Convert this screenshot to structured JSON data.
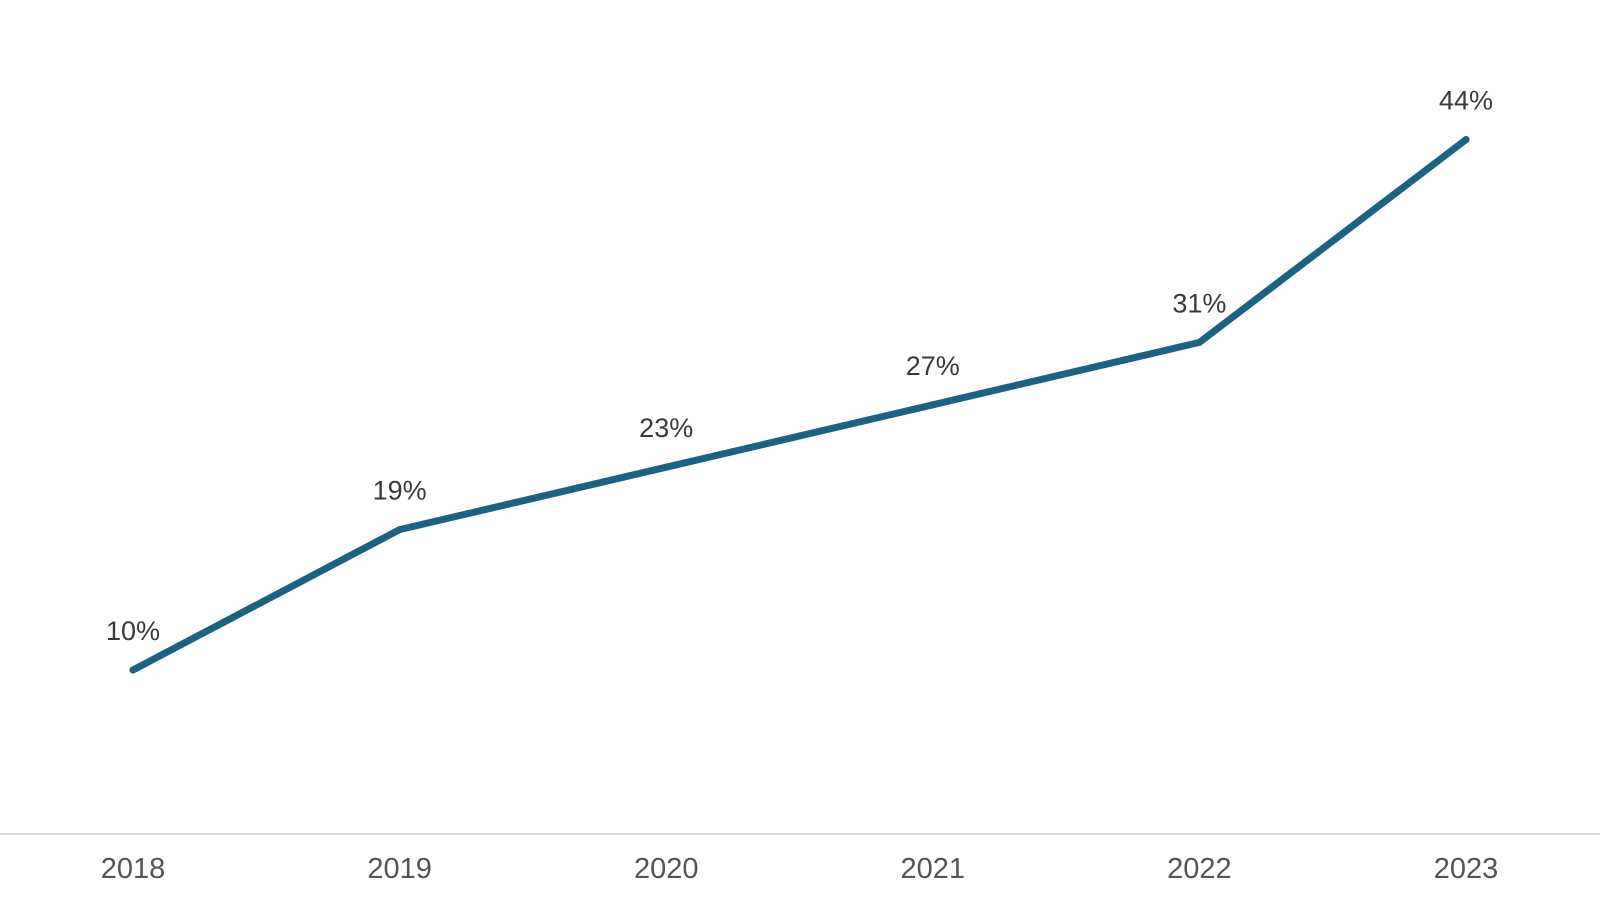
{
  "chart_data": {
    "type": "line",
    "title": "",
    "xlabel": "",
    "ylabel": "",
    "categories": [
      "2018",
      "2019",
      "2020",
      "2021",
      "2022",
      "2023"
    ],
    "series": [
      {
        "values": [
          10,
          19,
          23,
          27,
          31,
          44
        ],
        "labels": [
          "10%",
          "19%",
          "23%",
          "27%",
          "31%",
          "44%"
        ],
        "color": "#1b6283"
      }
    ],
    "ylim": [
      0,
      50
    ],
    "grid": false,
    "legend": "none",
    "axis_color": "#d9d9d9"
  }
}
